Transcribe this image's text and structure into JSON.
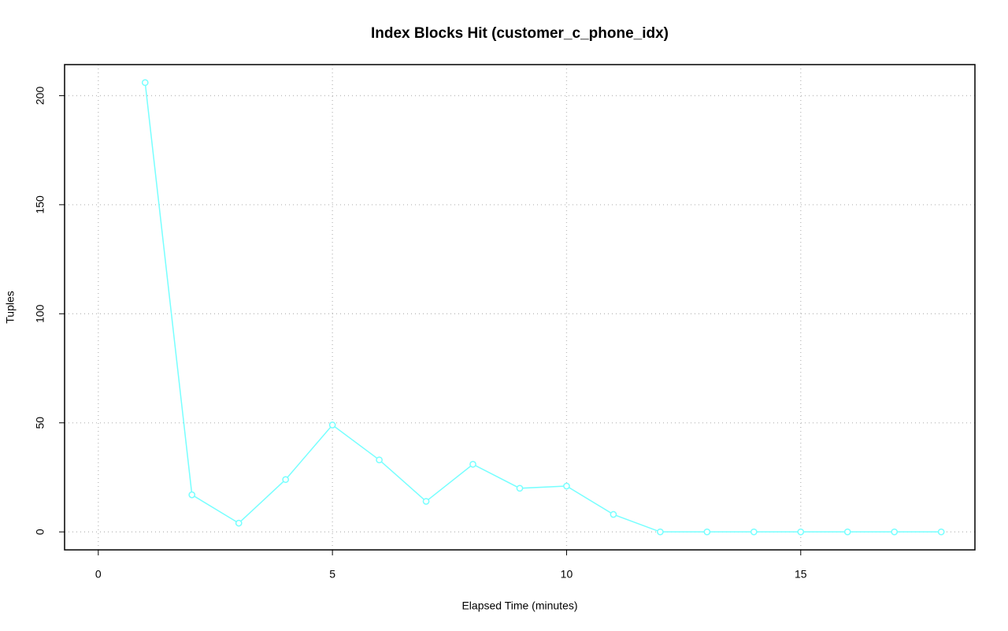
{
  "chart_data": {
    "type": "line",
    "title": "Index Blocks Hit (customer_c_phone_idx)",
    "x_label": "Elapsed Time (minutes)",
    "y_label": "Tuples",
    "x": [
      1,
      2,
      3,
      4,
      5,
      6,
      7,
      8,
      9,
      10,
      11,
      12,
      13,
      14,
      15,
      16,
      17,
      18
    ],
    "series": [
      {
        "name": "customer_c_phone_idx",
        "color": "#77ffff",
        "values": [
          206,
          17,
          4,
          24,
          49,
          33,
          14,
          31,
          20,
          21,
          8,
          0,
          0,
          0,
          0,
          0,
          0,
          0
        ]
      }
    ],
    "xlim": [
      -0.72,
      18.72
    ],
    "xticks": [
      0,
      5,
      10,
      15
    ],
    "ylim": [
      -8.24,
      214.24
    ],
    "yticks": [
      0,
      50,
      100,
      150,
      200
    ],
    "grid": true
  }
}
